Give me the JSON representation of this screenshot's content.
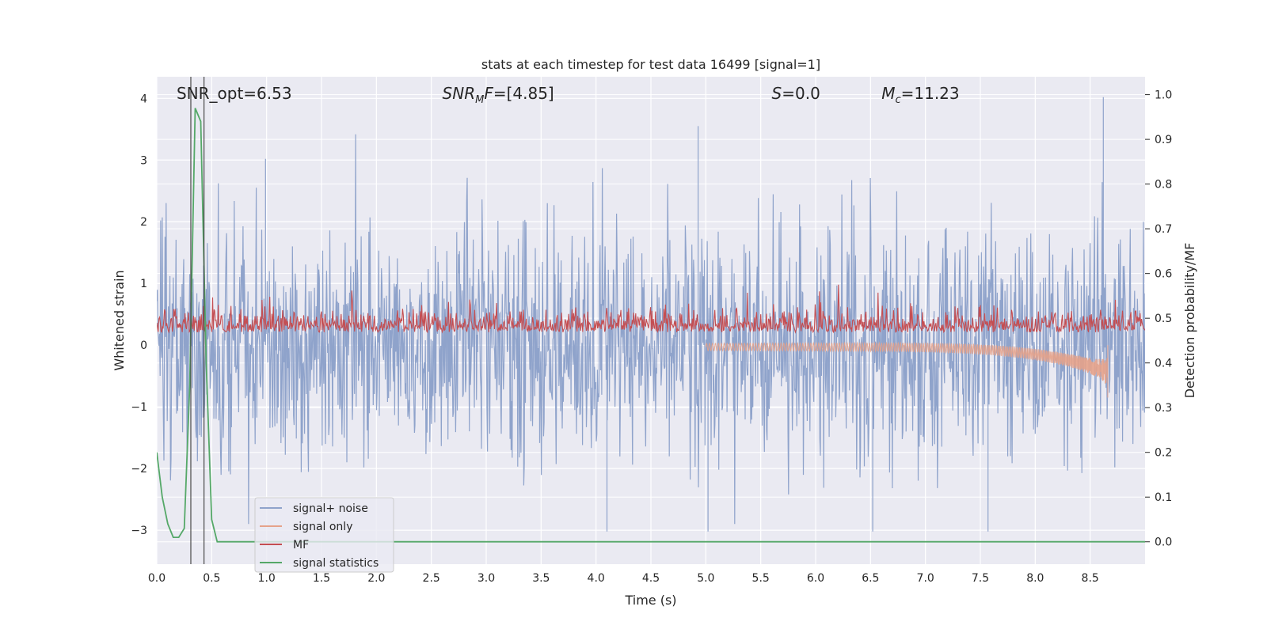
{
  "chart_data": {
    "type": "line",
    "title": "stats at each timestep for test data 16499 [signal=1]",
    "xlabel": "Time (s)",
    "ylabel": "Whitened strain",
    "ylabel_right": "Detection probability/MF",
    "xlim": [
      0.0,
      9.0
    ],
    "ylim": [
      -3.55,
      4.35
    ],
    "ylim_right": [
      -0.05,
      1.04
    ],
    "xticks": [
      "0.0",
      "0.5",
      "1.0",
      "1.5",
      "2.0",
      "2.5",
      "3.0",
      "3.5",
      "4.0",
      "4.5",
      "5.0",
      "5.5",
      "6.0",
      "6.5",
      "7.0",
      "7.5",
      "8.0",
      "8.5"
    ],
    "xtick_values": [
      0.0,
      0.5,
      1.0,
      1.5,
      2.0,
      2.5,
      3.0,
      3.5,
      4.0,
      4.5,
      5.0,
      5.5,
      6.0,
      6.5,
      7.0,
      7.5,
      8.0,
      8.5
    ],
    "yticks": [
      "−3",
      "−2",
      "−1",
      "0",
      "1",
      "2",
      "3",
      "4"
    ],
    "ytick_values": [
      -3,
      -2,
      -1,
      0,
      1,
      2,
      3,
      4
    ],
    "yticks_right": [
      "0.0",
      "0.1",
      "0.2",
      "0.3",
      "0.4",
      "0.5",
      "0.6",
      "0.7",
      "0.8",
      "0.9",
      "1.0"
    ],
    "ytick_right_values": [
      0.0,
      0.1,
      0.2,
      0.3,
      0.4,
      0.5,
      0.6,
      0.7,
      0.8,
      0.9,
      1.0
    ],
    "grid": true,
    "annotations": [
      {
        "text": "SNR_opt=6.53",
        "x": 0.18
      },
      {
        "text": "SNR_MF=[4.85]",
        "x": 2.6
      },
      {
        "text": "S=0.0",
        "x": 5.6
      },
      {
        "text": "Mc=11.23",
        "x": 6.6
      }
    ],
    "annotation_parts": {
      "snr_mf_base": "SNR",
      "snr_mf_sub": "M",
      "snr_mf_rest": "F",
      "snr_mf_value": "=[4.85]",
      "s_var": "S",
      "s_value": "=0.0",
      "mc_var": "M",
      "mc_sub": "c",
      "mc_value": "=11.23"
    },
    "vertical_lines": [
      0.31,
      0.43
    ],
    "noise_stats": {
      "std": 1.0,
      "max": 4.02,
      "min": -3.22,
      "peak_times": [
        0.99,
        4.93,
        8.62
      ],
      "dip_times": [
        4.1,
        5.02,
        6.52,
        7.57
      ]
    },
    "series": [
      {
        "name": "signal+ noise",
        "color": "#8fa3cb",
        "axis": "left",
        "kind": "noise"
      },
      {
        "name": "signal only",
        "color": "#e5a28a",
        "axis": "left",
        "kind": "chirp",
        "t_merge": 8.66,
        "amp_at_merge": -0.85
      },
      {
        "name": "MF",
        "color": "#c44e52",
        "axis": "left",
        "kind": "mf",
        "baseline": 0.25
      },
      {
        "name": "signal statistics",
        "color": "#55a868",
        "axis": "right",
        "x": [
          0.0,
          0.05,
          0.1,
          0.15,
          0.2,
          0.25,
          0.3,
          0.35,
          0.4,
          0.45,
          0.5,
          0.55,
          0.6,
          9.0
        ],
        "y": [
          0.2,
          0.1,
          0.04,
          0.01,
          0.01,
          0.03,
          0.35,
          0.97,
          0.94,
          0.4,
          0.05,
          0.0,
          0.0,
          0.0
        ]
      }
    ],
    "legend_position": "lower-left"
  }
}
